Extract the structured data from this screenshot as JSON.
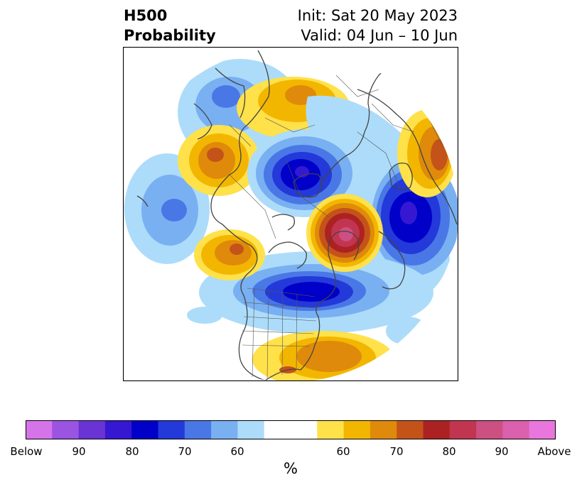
{
  "title": {
    "left_line1": "H500",
    "left_line2": "Probability",
    "right_line1": "Init: Sat 20 May 2023",
    "right_line2": "Valid: 04 Jun – 10 Jun"
  },
  "map": {
    "projection": "north polar stereographic",
    "features": [
      "coastlines",
      "country borders",
      "US state borders",
      "Canadian province borders"
    ],
    "anomalies": [
      {
        "name": "Eastern Canada / Hudson Bay",
        "category": "Above",
        "peak_percent": 90
      },
      {
        "name": "Alaska / Gulf of Alaska",
        "category": "Above",
        "peak_percent": 70
      },
      {
        "name": "Southeastern United States",
        "category": "Above",
        "peak_percent": 70
      },
      {
        "name": "Northern Europe",
        "category": "Above",
        "peak_percent": 70
      },
      {
        "name": "Central Siberia",
        "category": "Above",
        "peak_percent": 60
      },
      {
        "name": "Western Siberia",
        "category": "Above",
        "peak_percent": 70
      },
      {
        "name": "Northern Canada / Arctic Archipelago",
        "category": "Below",
        "peak_percent": 80
      },
      {
        "name": "Greenland Sea / Scandinavia",
        "category": "Below",
        "peak_percent": 80
      },
      {
        "name": "Eastern Siberia",
        "category": "Below",
        "peak_percent": 80
      },
      {
        "name": "North Pacific",
        "category": "Below",
        "peak_percent": 70
      }
    ]
  },
  "colorbar": {
    "tick_labels": [
      "Below",
      "90",
      "80",
      "70",
      "60",
      "60",
      "70",
      "80",
      "90",
      "Above"
    ],
    "label": "%",
    "colors": [
      "#d574e9",
      "#9b53e1",
      "#6a33d5",
      "#3618d2",
      "#0000c8",
      "#2339d9",
      "#4a77e6",
      "#79b0f2",
      "#acdcfa",
      "#ffffff",
      "#ffffff",
      "#ffe14a",
      "#f3b600",
      "#df8a0a",
      "#c4531a",
      "#ac2223",
      "#c23550",
      "#cc5081",
      "#db60ad",
      "#e876dd"
    ]
  }
}
